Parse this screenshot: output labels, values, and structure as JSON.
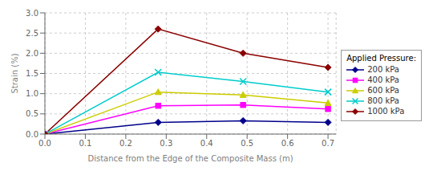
{
  "chart_data": {
    "type": "line",
    "x": [
      0.0,
      0.28,
      0.49,
      0.7
    ],
    "series": [
      {
        "name": "200 kPa",
        "color": "#00008B",
        "marker": "diamond",
        "values": [
          0.0,
          0.29,
          0.33,
          0.29
        ]
      },
      {
        "name": "400 kPa",
        "color": "#FF00FF",
        "marker": "square",
        "values": [
          0.0,
          0.7,
          0.72,
          0.62
        ]
      },
      {
        "name": "600 kPa",
        "color": "#CCCC00",
        "marker": "triangle",
        "values": [
          0.0,
          1.04,
          0.97,
          0.77
        ]
      },
      {
        "name": "800 kPa",
        "color": "#00CCCC",
        "marker": "x",
        "values": [
          0.0,
          1.53,
          1.3,
          1.04
        ]
      },
      {
        "name": "1000 kPa",
        "color": "#8B0000",
        "marker": "diamond",
        "values": [
          0.0,
          2.6,
          2.0,
          1.65
        ]
      }
    ],
    "xlabel": "Distance from the Edge of the Composite Mass (m)",
    "ylabel": "Strain (%)",
    "legend_title": "Applied Pressure:",
    "legend": "right",
    "xlim": [
      0.0,
      0.72
    ],
    "ylim": [
      0.0,
      3.0
    ],
    "xticks": [
      {
        "value": 0,
        "label": "0.0"
      },
      0.1,
      0.2,
      0.3,
      0.4,
      0.5,
      0.6,
      0.7
    ],
    "yticks": [
      {
        "value": 0,
        "label": "0.0"
      },
      0.5,
      {
        "value": 1,
        "label": "1.0"
      },
      1.5,
      {
        "value": 2,
        "label": "2.0"
      },
      2.5,
      {
        "value": 3,
        "label": "3.0"
      }
    ],
    "grid": true
  }
}
